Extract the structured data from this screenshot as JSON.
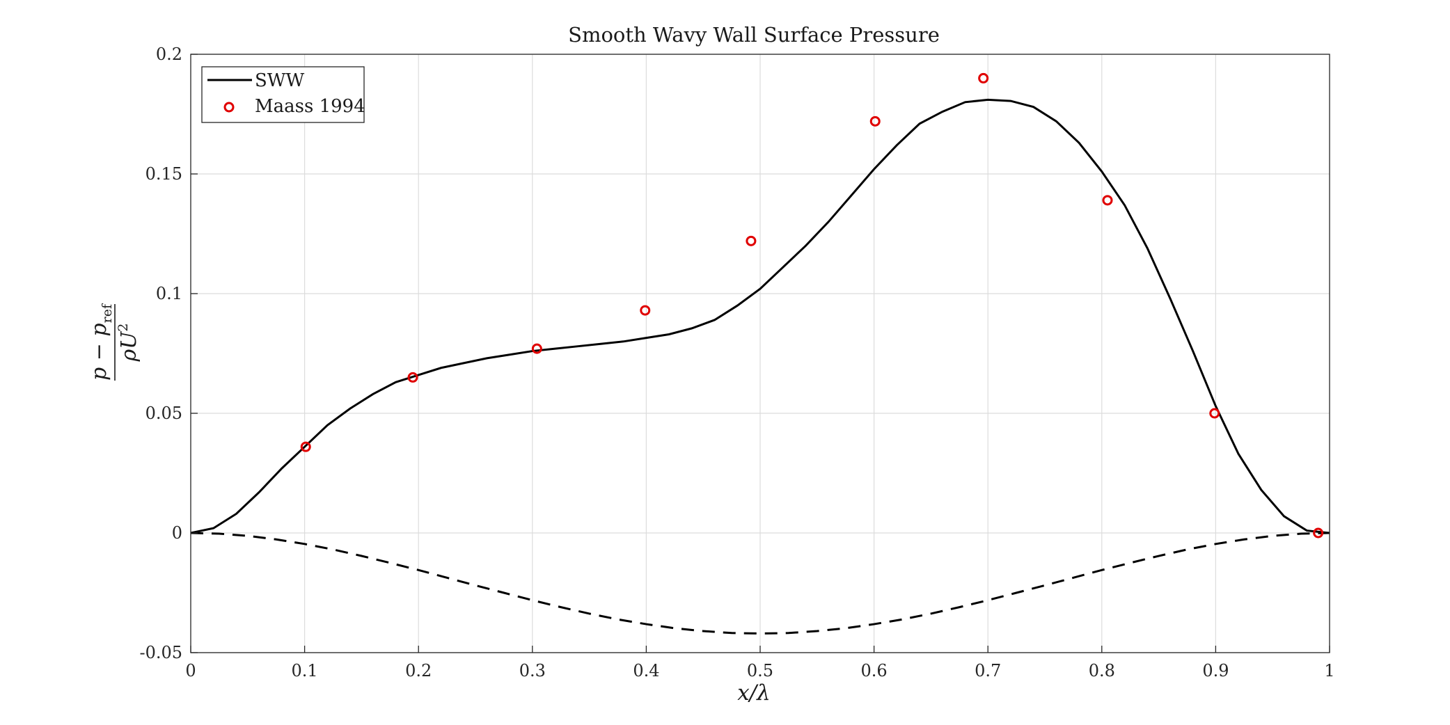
{
  "chart_data": {
    "type": "line",
    "title": "Smooth Wavy Wall Surface Pressure",
    "xlabel": "x/λ",
    "ylabel": {
      "numerator_main": "p − p",
      "numerator_sub": "ref",
      "denominator_main": "ρU",
      "denominator_sup": "2"
    },
    "xlim": [
      0,
      1
    ],
    "ylim": [
      -0.05,
      0.2
    ],
    "x_ticks": [
      0,
      0.1,
      0.2,
      0.3,
      0.4,
      0.5,
      0.6,
      0.7,
      0.8,
      0.9,
      1
    ],
    "x_tick_labels": [
      "0",
      "0.1",
      "0.2",
      "0.3",
      "0.4",
      "0.5",
      "0.6",
      "0.7",
      "0.8",
      "0.9",
      "1"
    ],
    "y_ticks": [
      -0.05,
      0,
      0.05,
      0.1,
      0.15,
      0.2
    ],
    "y_tick_labels": [
      "-0.05",
      "0",
      "0.05",
      "0.1",
      "0.15",
      "0.2"
    ],
    "grid": true,
    "legend_position": "top-left",
    "series": [
      {
        "name": "SWW",
        "style": "solid",
        "color": "#000000",
        "x": [
          0,
          0.02,
          0.04,
          0.06,
          0.08,
          0.1,
          0.12,
          0.14,
          0.16,
          0.18,
          0.2,
          0.22,
          0.24,
          0.26,
          0.28,
          0.3,
          0.32,
          0.34,
          0.36,
          0.38,
          0.4,
          0.42,
          0.44,
          0.46,
          0.48,
          0.5,
          0.52,
          0.54,
          0.56,
          0.58,
          0.6,
          0.62,
          0.64,
          0.66,
          0.68,
          0.7,
          0.72,
          0.74,
          0.76,
          0.78,
          0.8,
          0.82,
          0.84,
          0.86,
          0.88,
          0.9,
          0.92,
          0.94,
          0.96,
          0.98,
          1.0
        ],
        "y": [
          0,
          0.002,
          0.008,
          0.017,
          0.027,
          0.036,
          0.045,
          0.052,
          0.058,
          0.063,
          0.066,
          0.069,
          0.071,
          0.073,
          0.0745,
          0.076,
          0.077,
          0.078,
          0.079,
          0.08,
          0.0815,
          0.083,
          0.0855,
          0.089,
          0.095,
          0.102,
          0.111,
          0.12,
          0.13,
          0.141,
          0.152,
          0.162,
          0.171,
          0.176,
          0.18,
          0.181,
          0.1805,
          0.178,
          0.172,
          0.163,
          0.151,
          0.137,
          0.119,
          0.098,
          0.076,
          0.053,
          0.033,
          0.018,
          0.007,
          0.001,
          0
        ]
      },
      {
        "name": "",
        "style": "dashed",
        "color": "#000000",
        "x": [
          0,
          0.025,
          0.05,
          0.075,
          0.1,
          0.125,
          0.15,
          0.175,
          0.2,
          0.225,
          0.25,
          0.275,
          0.3,
          0.325,
          0.35,
          0.375,
          0.4,
          0.425,
          0.45,
          0.475,
          0.5,
          0.525,
          0.55,
          0.575,
          0.6,
          0.625,
          0.65,
          0.675,
          0.7,
          0.725,
          0.75,
          0.775,
          0.8,
          0.825,
          0.85,
          0.875,
          0.9,
          0.925,
          0.95,
          0.975,
          1.0
        ],
        "y": [
          0,
          -0.0003,
          -0.0012,
          -0.0027,
          -0.0046,
          -0.0069,
          -0.0096,
          -0.0125,
          -0.0155,
          -0.0187,
          -0.0219,
          -0.025,
          -0.0281,
          -0.031,
          -0.0337,
          -0.0361,
          -0.0381,
          -0.0398,
          -0.041,
          -0.0418,
          -0.042,
          -0.0418,
          -0.041,
          -0.0398,
          -0.0381,
          -0.0361,
          -0.0337,
          -0.031,
          -0.0281,
          -0.025,
          -0.0219,
          -0.0187,
          -0.0155,
          -0.0125,
          -0.0096,
          -0.0069,
          -0.0046,
          -0.0027,
          -0.0012,
          -0.0003,
          0
        ]
      },
      {
        "name": "Maass 1994",
        "style": "markers",
        "marker": "circle",
        "color": "#e00000",
        "x": [
          0.101,
          0.195,
          0.304,
          0.399,
          0.492,
          0.601,
          0.696,
          0.805,
          0.899,
          0.99
        ],
        "y": [
          0.036,
          0.065,
          0.077,
          0.093,
          0.122,
          0.172,
          0.19,
          0.139,
          0.05,
          0
        ]
      }
    ]
  }
}
